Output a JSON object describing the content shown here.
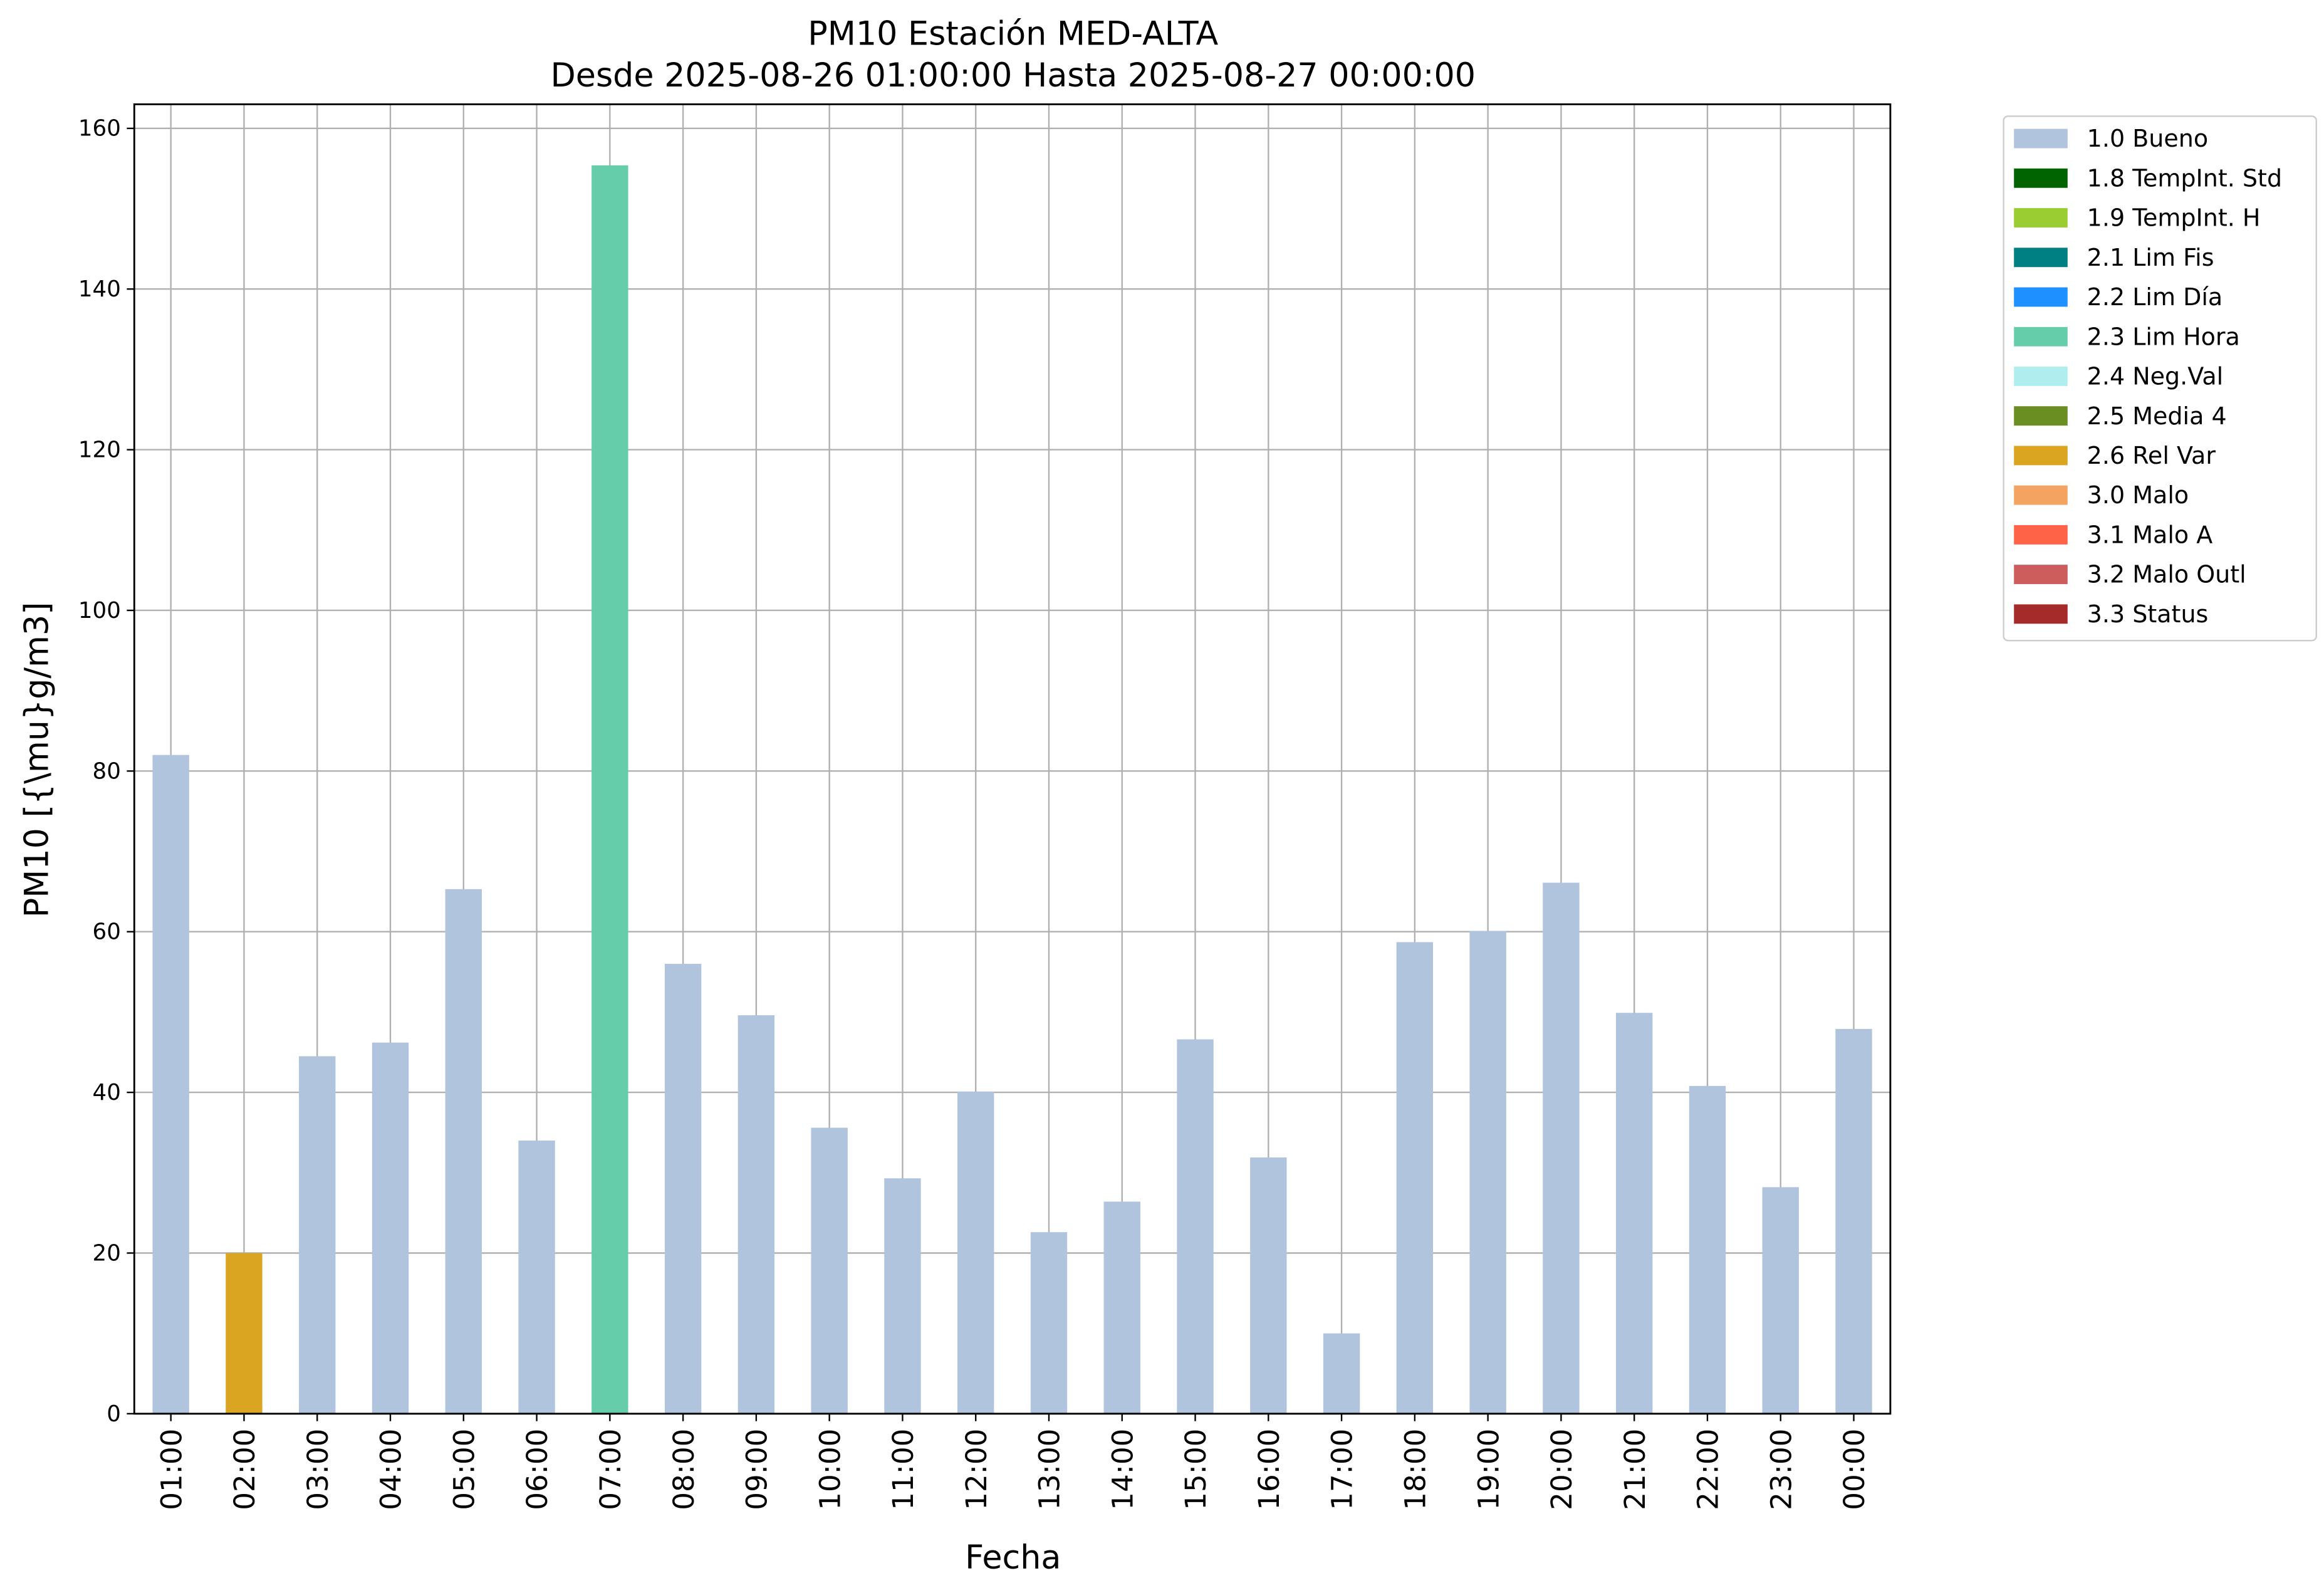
{
  "chart_data": {
    "type": "bar",
    "stacked": true,
    "title": "PM10 Estación MED-ALTA",
    "subtitle": "Desde 2025-08-26 01:00:00 Hasta 2025-08-27 00:00:00",
    "x_label": "Fecha",
    "y_label": "PM10 [{\\mu}g/m3]",
    "categories": [
      "01:00",
      "02:00",
      "03:00",
      "04:00",
      "05:00",
      "06:00",
      "07:00",
      "08:00",
      "09:00",
      "10:00",
      "11:00",
      "12:00",
      "13:00",
      "14:00",
      "15:00",
      "16:00",
      "17:00",
      "18:00",
      "19:00",
      "20:00",
      "21:00",
      "22:00",
      "23:00",
      "00:00"
    ],
    "ylim": [
      0,
      163
    ],
    "yticks": [
      0,
      20,
      40,
      60,
      80,
      100,
      120,
      140,
      160
    ],
    "grid": true,
    "legend": "outside-right",
    "series": [
      {
        "name": "1.0 Bueno",
        "color": "#b0c4de",
        "values": [
          82,
          null,
          44.5,
          46.2,
          65.3,
          34,
          null,
          56,
          49.6,
          35.6,
          29.3,
          40.1,
          22.6,
          26.4,
          46.6,
          31.9,
          10,
          58.7,
          60.1,
          66.1,
          49.9,
          40.8,
          28.2,
          47.9
        ]
      },
      {
        "name": "1.8 TempInt. Std",
        "color": "#006400",
        "values": [
          null,
          null,
          null,
          null,
          null,
          null,
          null,
          null,
          null,
          null,
          null,
          null,
          null,
          null,
          null,
          null,
          null,
          null,
          null,
          null,
          null,
          null,
          null,
          null
        ]
      },
      {
        "name": "1.9 TempInt. H",
        "color": "#9acd32",
        "values": [
          null,
          null,
          null,
          null,
          null,
          null,
          null,
          null,
          null,
          null,
          null,
          null,
          null,
          null,
          null,
          null,
          null,
          null,
          null,
          null,
          null,
          null,
          null,
          null
        ]
      },
      {
        "name": "2.1 Lim Fis",
        "color": "#008080",
        "values": [
          null,
          null,
          null,
          null,
          null,
          null,
          null,
          null,
          null,
          null,
          null,
          null,
          null,
          null,
          null,
          null,
          null,
          null,
          null,
          null,
          null,
          null,
          null,
          null
        ]
      },
      {
        "name": "2.2 Lim Día",
        "color": "#1e90ff",
        "values": [
          null,
          null,
          null,
          null,
          null,
          null,
          null,
          null,
          null,
          null,
          null,
          null,
          null,
          null,
          null,
          null,
          null,
          null,
          null,
          null,
          null,
          null,
          null,
          null
        ]
      },
      {
        "name": "2.3 Lim Hora",
        "color": "#66cdaa",
        "values": [
          null,
          null,
          null,
          null,
          null,
          null,
          155.4,
          null,
          null,
          null,
          null,
          null,
          null,
          null,
          null,
          null,
          null,
          null,
          null,
          null,
          null,
          null,
          null,
          null
        ]
      },
      {
        "name": "2.4 Neg.Val",
        "color": "#afeeee",
        "values": [
          null,
          null,
          null,
          null,
          null,
          null,
          null,
          null,
          null,
          null,
          null,
          null,
          null,
          null,
          null,
          null,
          null,
          null,
          null,
          null,
          null,
          null,
          null,
          null
        ]
      },
      {
        "name": "2.5 Media 4",
        "color": "#6b8e23",
        "values": [
          null,
          null,
          null,
          null,
          null,
          null,
          null,
          null,
          null,
          null,
          null,
          null,
          null,
          null,
          null,
          null,
          null,
          null,
          null,
          null,
          null,
          null,
          null,
          null
        ]
      },
      {
        "name": "2.6 Rel Var",
        "color": "#daa520",
        "values": [
          null,
          20,
          null,
          null,
          null,
          null,
          null,
          null,
          null,
          null,
          null,
          null,
          null,
          null,
          null,
          null,
          null,
          null,
          null,
          null,
          null,
          null,
          null,
          null
        ]
      },
      {
        "name": "3.0 Malo",
        "color": "#f4a460",
        "values": [
          null,
          null,
          null,
          null,
          null,
          null,
          null,
          null,
          null,
          null,
          null,
          null,
          null,
          null,
          null,
          null,
          null,
          null,
          null,
          null,
          null,
          null,
          null,
          null
        ]
      },
      {
        "name": "3.1 Malo A",
        "color": "#ff6347",
        "values": [
          null,
          null,
          null,
          null,
          null,
          null,
          null,
          null,
          null,
          null,
          null,
          null,
          null,
          null,
          null,
          null,
          null,
          null,
          null,
          null,
          null,
          null,
          null,
          null
        ]
      },
      {
        "name": "3.2 Malo Outl",
        "color": "#cd5c5c",
        "values": [
          null,
          null,
          null,
          null,
          null,
          null,
          null,
          null,
          null,
          null,
          null,
          null,
          null,
          null,
          null,
          null,
          null,
          null,
          null,
          null,
          null,
          null,
          null,
          null
        ]
      },
      {
        "name": "3.3 Status",
        "color": "#a52a2a",
        "values": [
          null,
          null,
          null,
          null,
          null,
          null,
          null,
          null,
          null,
          null,
          null,
          null,
          null,
          null,
          null,
          null,
          null,
          null,
          null,
          null,
          null,
          null,
          null,
          null
        ]
      }
    ]
  }
}
